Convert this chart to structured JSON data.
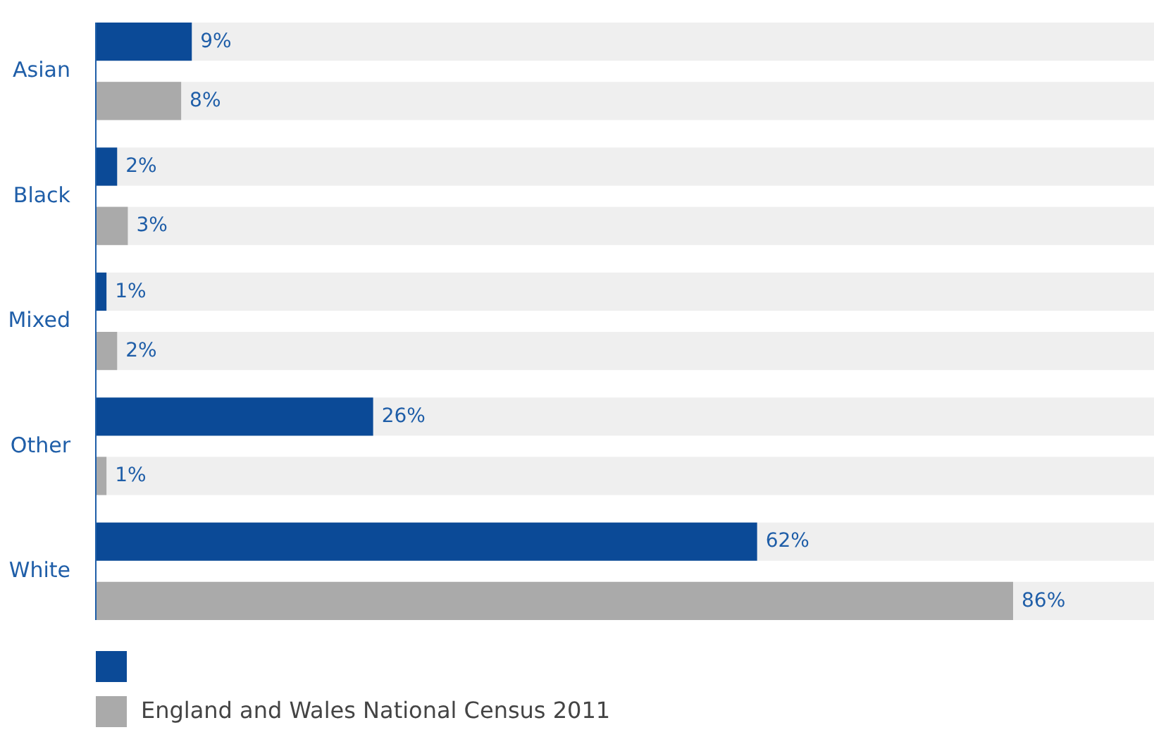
{
  "chart_data": {
    "type": "bar",
    "orientation": "horizontal",
    "categories": [
      "Asian",
      "Black",
      "Mixed",
      "Other",
      "White"
    ],
    "series": [
      {
        "color": "#0b4a97",
        "values": [
          9,
          2,
          1,
          26,
          62
        ],
        "value_labels": [
          "9%",
          "2%",
          "1%",
          "26%",
          "62%"
        ]
      },
      {
        "name": "England and Wales National Census 2011",
        "color": "#aaaaaa",
        "values": [
          8,
          3,
          2,
          1,
          86
        ],
        "value_labels": [
          "8%",
          "3%",
          "2%",
          "1%",
          "86%"
        ]
      }
    ],
    "legend": "bottom left"
  }
}
